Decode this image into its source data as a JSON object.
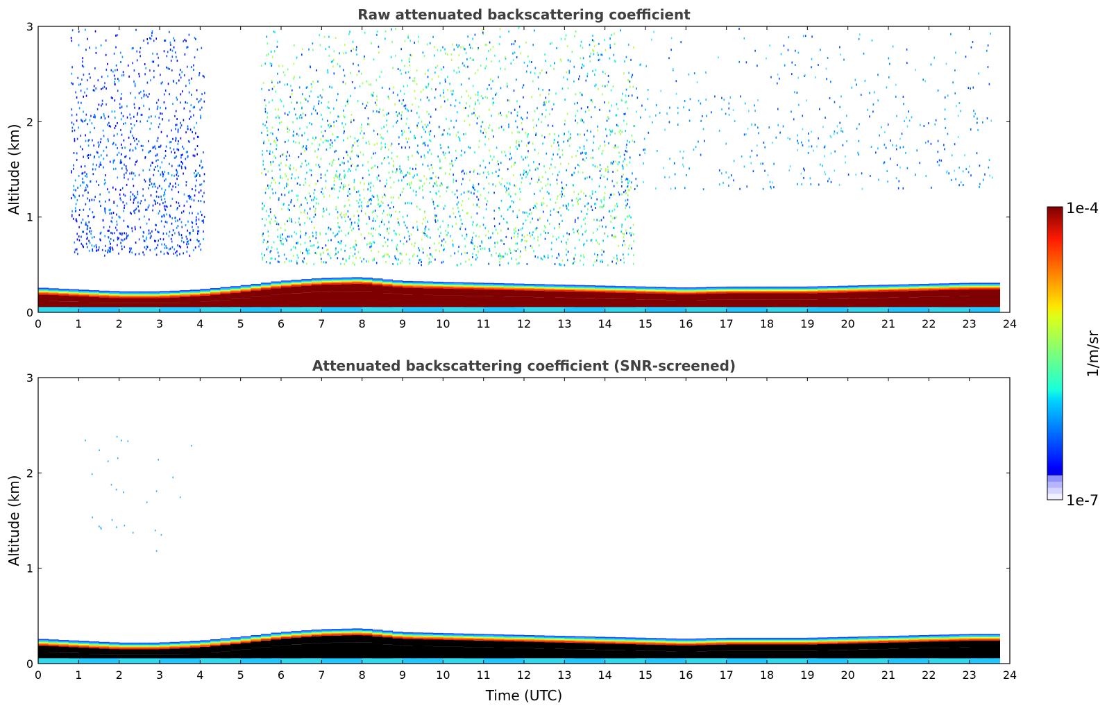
{
  "chart_data": [
    {
      "type": "heatmap",
      "title": "Raw attenuated backscattering coefficient",
      "xlabel": "",
      "ylabel": "Altitude (km)",
      "xlim": [
        0,
        24
      ],
      "ylim": [
        0,
        3
      ],
      "xticks": [
        0,
        1,
        2,
        3,
        4,
        5,
        6,
        7,
        8,
        9,
        10,
        11,
        12,
        13,
        14,
        15,
        16,
        17,
        18,
        19,
        20,
        21,
        22,
        23,
        24
      ],
      "yticks": [
        0,
        1,
        2,
        3
      ],
      "screened": false,
      "data_end_hour": 23.6,
      "layer_top_km": {
        "hours": [
          0,
          1,
          2,
          3,
          4,
          5,
          6,
          7,
          8,
          9,
          10,
          11,
          12,
          13,
          14,
          15,
          16,
          17,
          18,
          19,
          20,
          21,
          22,
          23,
          23.6
        ],
        "values": [
          0.26,
          0.24,
          0.22,
          0.22,
          0.24,
          0.28,
          0.33,
          0.36,
          0.37,
          0.33,
          0.32,
          0.31,
          0.3,
          0.29,
          0.28,
          0.27,
          0.26,
          0.27,
          0.27,
          0.27,
          0.28,
          0.29,
          0.3,
          0.31,
          0.31
        ]
      },
      "cloud_regions": [
        {
          "hours": [
            0.8,
            4.1
          ],
          "altitude_km": [
            0.6,
            3.0
          ],
          "level": "low"
        },
        {
          "hours": [
            5.5,
            14.7
          ],
          "altitude_km": [
            0.5,
            3.0
          ],
          "level": "medium"
        },
        {
          "hours": [
            14.5,
            23.6
          ],
          "altitude_km": [
            1.3,
            3.0
          ],
          "level": "sparse"
        }
      ]
    },
    {
      "type": "heatmap",
      "title": "Attenuated backscattering coefficient (SNR-screened)",
      "xlabel": "Time (UTC)",
      "ylabel": "Altitude (km)",
      "xlim": [
        0,
        24
      ],
      "ylim": [
        0,
        3
      ],
      "xticks": [
        0,
        1,
        2,
        3,
        4,
        5,
        6,
        7,
        8,
        9,
        10,
        11,
        12,
        13,
        14,
        15,
        16,
        17,
        18,
        19,
        20,
        21,
        22,
        23,
        24
      ],
      "yticks": [
        0,
        1,
        2,
        3
      ],
      "screened": true,
      "data_end_hour": 23.6,
      "layer_top_km": {
        "hours": [
          0,
          1,
          2,
          3,
          4,
          5,
          6,
          7,
          8,
          9,
          10,
          11,
          12,
          13,
          14,
          15,
          16,
          17,
          18,
          19,
          20,
          21,
          22,
          23,
          23.6
        ],
        "values": [
          0.26,
          0.24,
          0.22,
          0.22,
          0.24,
          0.28,
          0.33,
          0.36,
          0.37,
          0.33,
          0.32,
          0.31,
          0.3,
          0.29,
          0.28,
          0.27,
          0.26,
          0.27,
          0.27,
          0.27,
          0.28,
          0.29,
          0.3,
          0.31,
          0.31
        ]
      }
    }
  ],
  "colorbar": {
    "label": "1/m/sr",
    "max_label": "1e-4",
    "min_label": "1e-7",
    "scale": "log",
    "range": [
      1e-07,
      0.0001
    ],
    "colormap": "jet",
    "low_colors": [
      "#f0f0ff",
      "#d4d4ff",
      "#b4b4ff",
      "#9090ff"
    ],
    "screened_peak_color": "#000000"
  }
}
